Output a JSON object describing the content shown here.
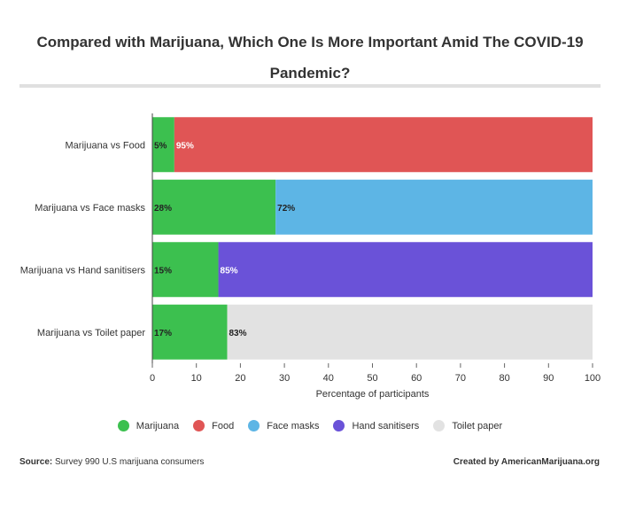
{
  "title": "Compared with Marijuana, Which One Is More Important Amid The COVID-19 Pandemic?",
  "footer": {
    "source_label": "Source:",
    "source_text": "Survey 990 U.S marijuana consumers",
    "credit": "Created by AmericanMarijuana.org"
  },
  "colors": {
    "Marijuana": "#3cc04f",
    "Food": "#e05555",
    "Face masks": "#5db5e5",
    "Hand sanitisers": "#6a52d8",
    "Toilet paper": "#e2e2e2"
  },
  "chart_data": {
    "type": "bar",
    "orientation": "horizontal",
    "stacked": true,
    "xlabel": "Percentage of participants",
    "xlim": [
      0,
      100
    ],
    "xticks": [
      0,
      10,
      20,
      30,
      40,
      50,
      60,
      70,
      80,
      90,
      100
    ],
    "categories": [
      "Marijuana vs Food",
      "Marijuana vs Face masks",
      "Marijuana vs Hand sanitisers",
      "Marijuana vs Toilet paper"
    ],
    "rows": [
      {
        "segments": [
          {
            "series": "Marijuana",
            "value": 5,
            "label": "5%"
          },
          {
            "series": "Food",
            "value": 95,
            "label": "95%"
          }
        ]
      },
      {
        "segments": [
          {
            "series": "Marijuana",
            "value": 28,
            "label": "28%"
          },
          {
            "series": "Face masks",
            "value": 72,
            "label": "72%"
          }
        ]
      },
      {
        "segments": [
          {
            "series": "Marijuana",
            "value": 15,
            "label": "15%"
          },
          {
            "series": "Hand sanitisers",
            "value": 85,
            "label": "85%"
          }
        ]
      },
      {
        "segments": [
          {
            "series": "Marijuana",
            "value": 17,
            "label": "17%"
          },
          {
            "series": "Toilet paper",
            "value": 83,
            "label": "83%"
          }
        ]
      }
    ],
    "legend": [
      "Marijuana",
      "Food",
      "Face masks",
      "Hand sanitisers",
      "Toilet paper"
    ],
    "legend_position": "bottom",
    "grid": false
  }
}
